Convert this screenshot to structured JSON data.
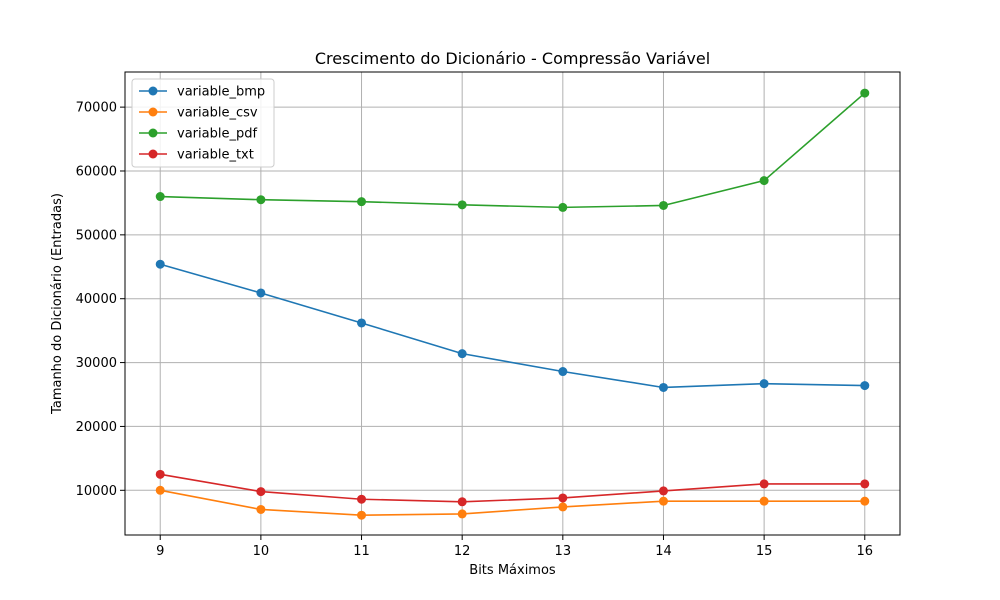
{
  "chart_data": {
    "type": "line",
    "title": "Crescimento do Dicionário - Compressão Variável",
    "xlabel": "Bits Máximos",
    "ylabel": "Tamanho do Dicionário (Entradas)",
    "x": [
      9,
      10,
      11,
      12,
      13,
      14,
      15,
      16
    ],
    "xlim": [
      8.65,
      16.35
    ],
    "ylim": [
      3000,
      75500
    ],
    "xticks": [
      "9",
      "10",
      "11",
      "12",
      "13",
      "14",
      "15",
      "16"
    ],
    "yticks": [
      "10000",
      "20000",
      "30000",
      "40000",
      "50000",
      "60000",
      "70000"
    ],
    "ytick_values": [
      10000,
      20000,
      30000,
      40000,
      50000,
      60000,
      70000
    ],
    "grid": true,
    "legend_position": "upper-left",
    "series": [
      {
        "name": "variable_bmp",
        "color": "#1f77b4",
        "values": [
          45400,
          40900,
          36200,
          31400,
          28600,
          26100,
          26700,
          26400
        ]
      },
      {
        "name": "variable_csv",
        "color": "#ff7f0e",
        "values": [
          10000,
          7000,
          6100,
          6300,
          7400,
          8300,
          8300,
          8300
        ]
      },
      {
        "name": "variable_pdf",
        "color": "#2ca02c",
        "values": [
          56000,
          55500,
          55200,
          54700,
          54300,
          54600,
          58500,
          72200
        ]
      },
      {
        "name": "variable_txt",
        "color": "#d62728",
        "values": [
          12500,
          9800,
          8600,
          8200,
          8800,
          9900,
          11000,
          11000
        ]
      }
    ]
  }
}
